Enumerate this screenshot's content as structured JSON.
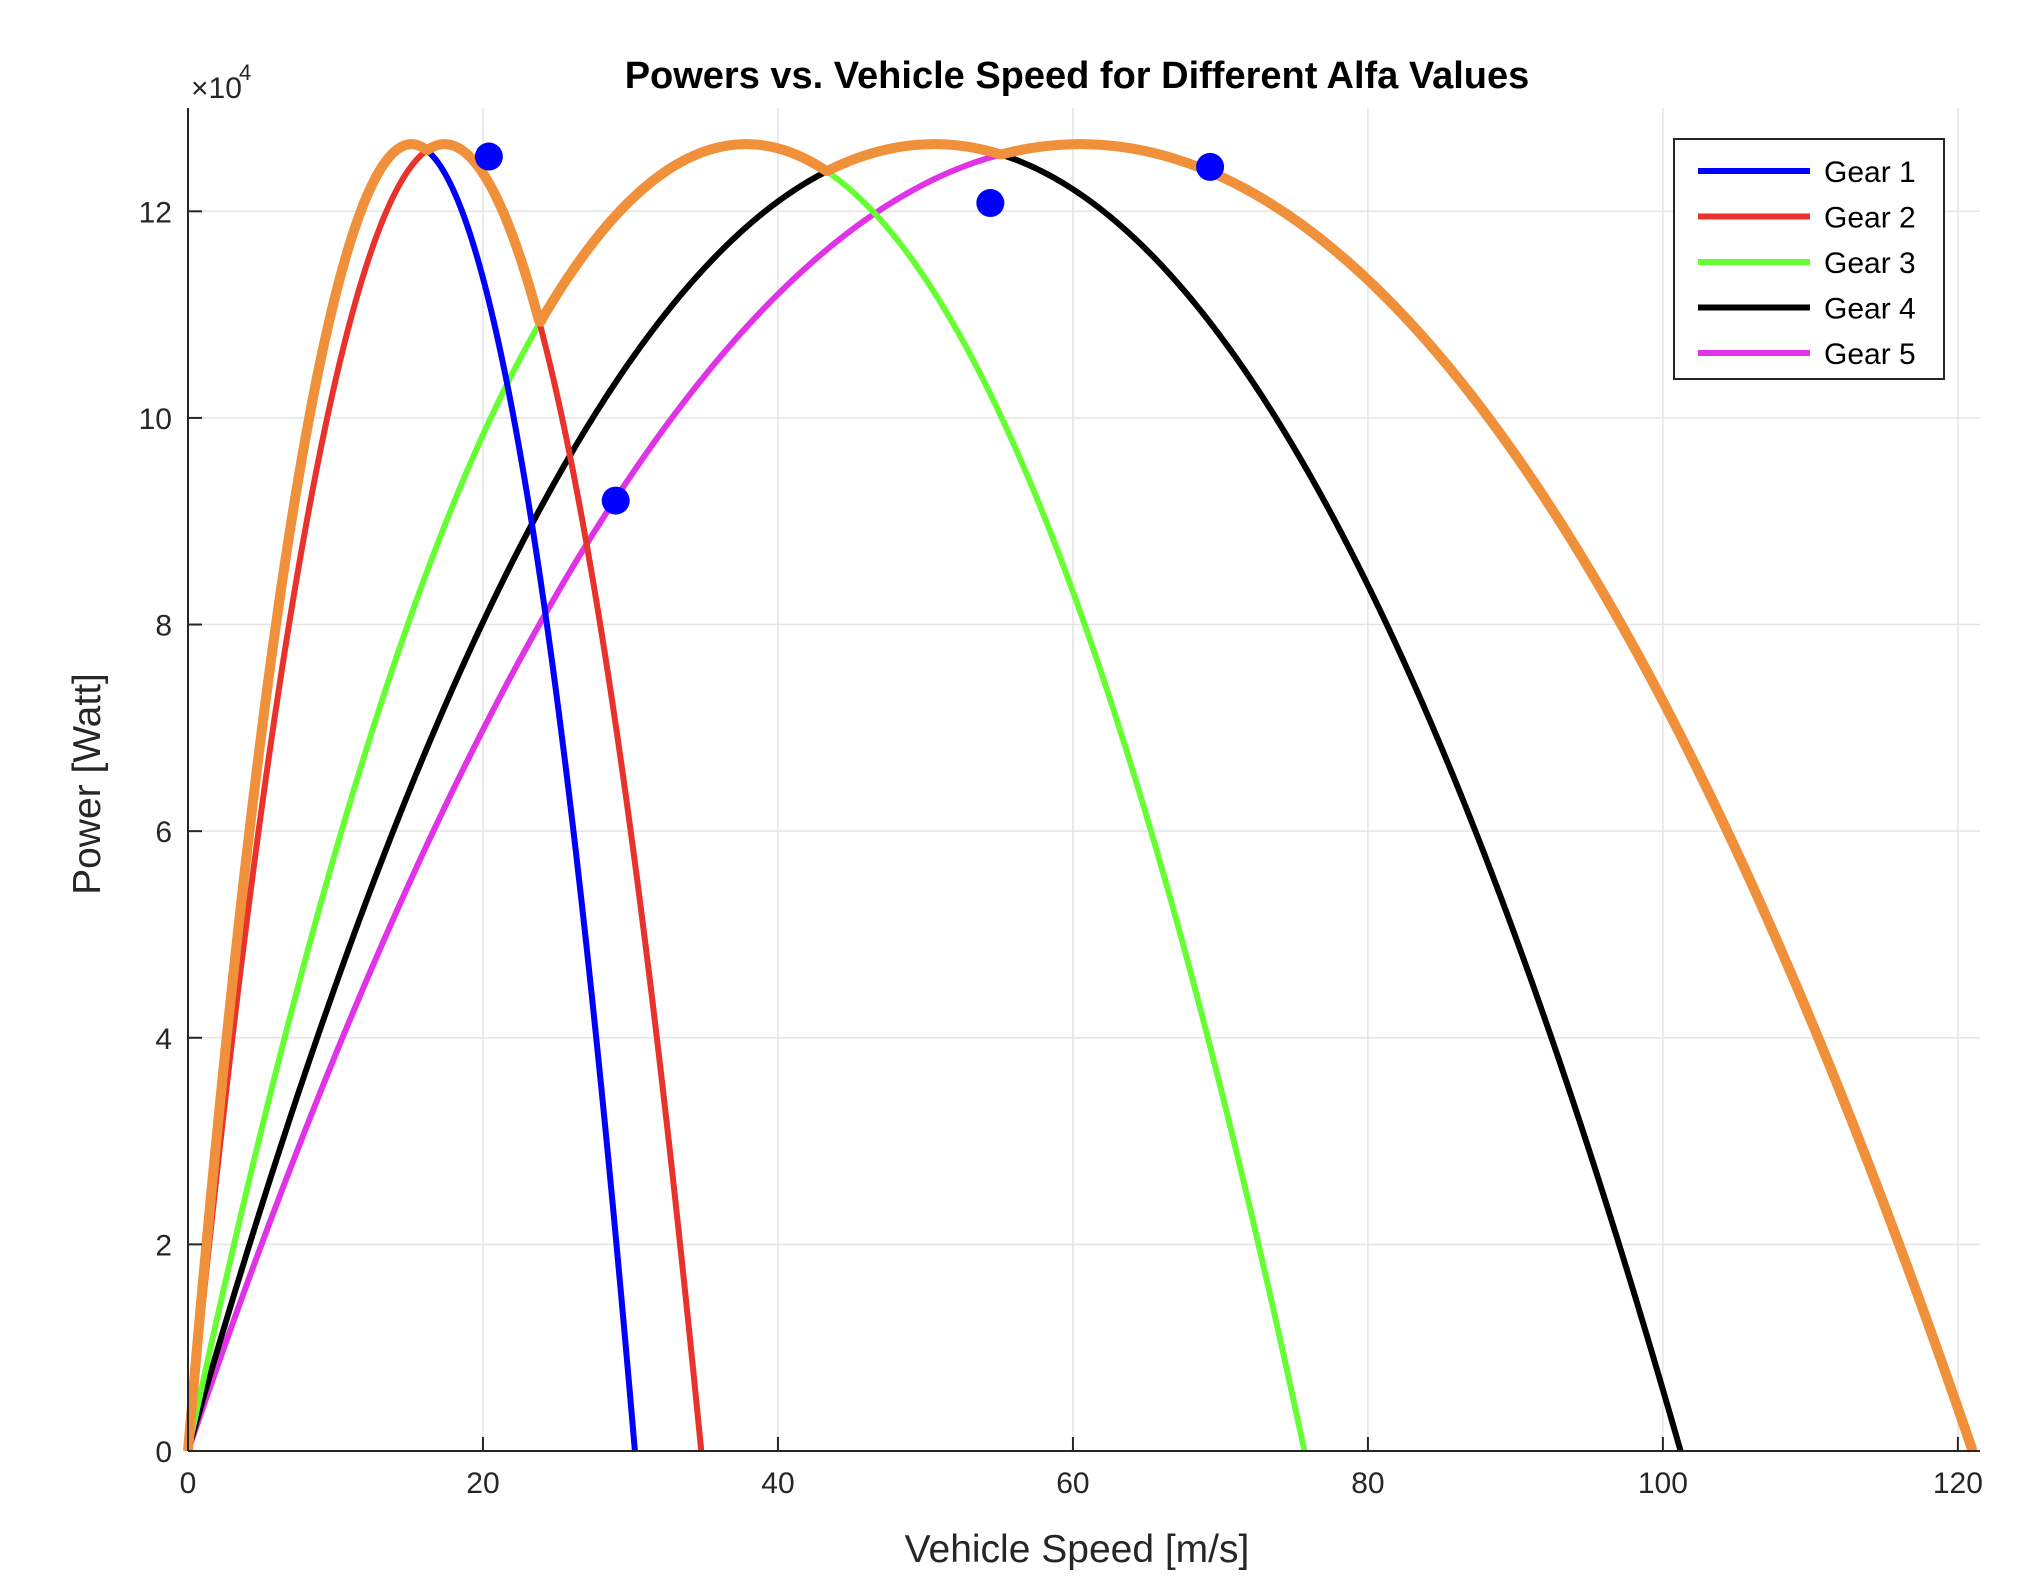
{
  "chart_data": {
    "type": "line",
    "title": "Powers vs. Vehicle Speed for Different Alfa Values",
    "xlabel": "Vehicle Speed [m/s]",
    "ylabel": "Power [Watt]",
    "y_exponent_label": "×10",
    "y_exponent_power": "4",
    "xlim": [
      0,
      121.5
    ],
    "ylim": [
      0,
      130000
    ],
    "xticks": [
      0,
      20,
      40,
      60,
      80,
      100,
      120
    ],
    "yticks": [
      0,
      20000,
      40000,
      60000,
      80000,
      100000,
      120000
    ],
    "ytick_labels": [
      "0",
      "2",
      "4",
      "6",
      "8",
      "10",
      "12"
    ],
    "grid": true,
    "legend_position": "top-right",
    "pmax": 126500,
    "series": [
      {
        "name": "Gear 1",
        "color": "#0000FF",
        "vmax": 30.3
      },
      {
        "name": "Gear 2",
        "color": "#E8322B",
        "vmax": 34.8
      },
      {
        "name": "Gear 3",
        "color": "#66FF33",
        "vmax": 75.7
      },
      {
        "name": "Gear 4",
        "color": "#000000",
        "vmax": 101.2
      },
      {
        "name": "Gear 5",
        "color": "#E033E8",
        "vmax": 121
      }
    ],
    "envelope": {
      "color": "#F0903A"
    },
    "shift_points": [
      {
        "x": 20.4,
        "y": 125300
      },
      {
        "x": 29.0,
        "y": 92000
      },
      {
        "x": 54.4,
        "y": 120800
      },
      {
        "x": 69.3,
        "y": 124300
      }
    ],
    "shift_point_color": "#0000FF"
  }
}
